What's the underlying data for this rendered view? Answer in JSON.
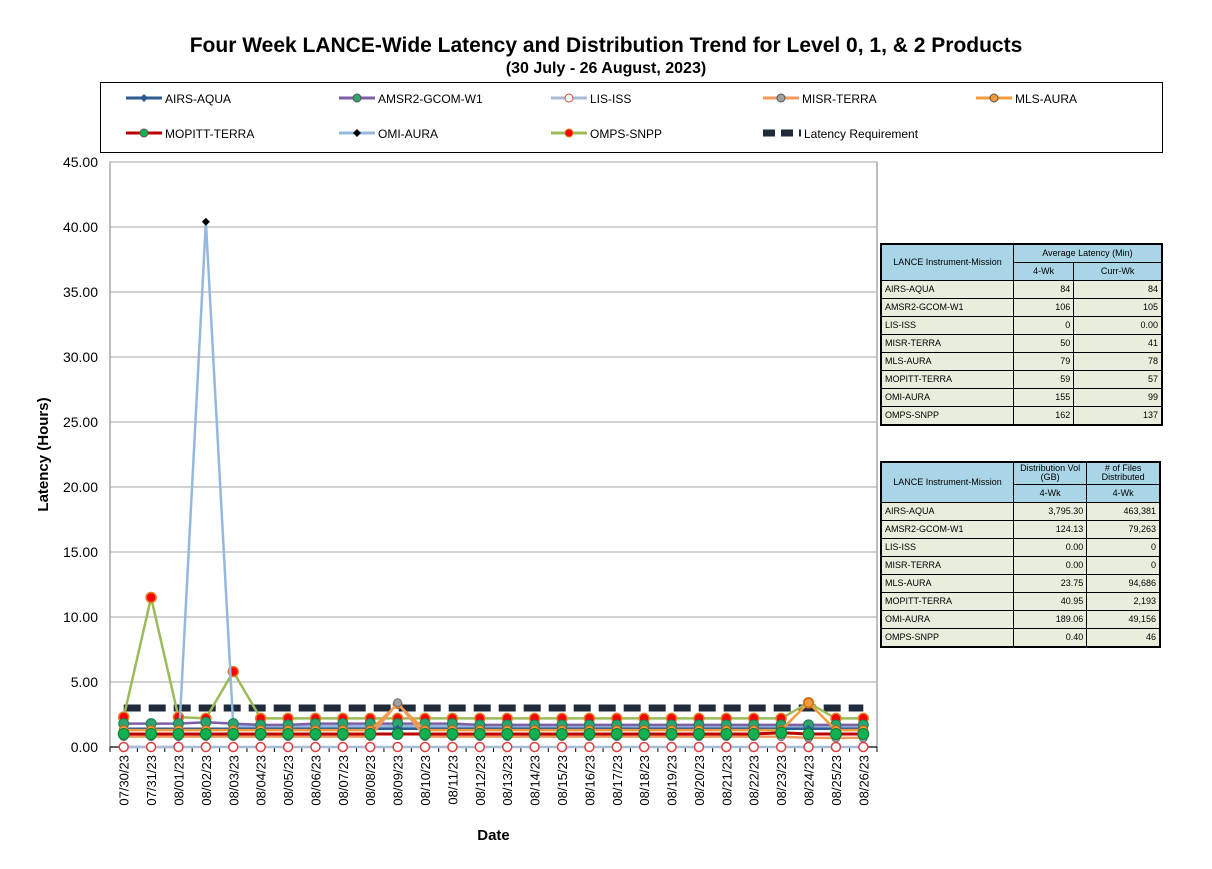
{
  "title": "Four Week LANCE-Wide Latency and Distribution Trend for Level 0, 1, & 2 Products",
  "subtitle": "(30  July   -  26  August,  2023)",
  "legend": [
    {
      "name": "AIRS-AQUA",
      "color": "#2e5b91",
      "marker": "diamond"
    },
    {
      "name": "AMSR2-GCOM-W1",
      "color": "#7f5ea8",
      "marker": "circle-green"
    },
    {
      "name": "LIS-ISS",
      "color": "#a7bdd6",
      "marker": "circle-hollow-red"
    },
    {
      "name": "MISR-TERRA",
      "color": "#f29a5c",
      "marker": "circle-gray"
    },
    {
      "name": "MLS-AURA",
      "color": "#f39a3c",
      "marker": "circle-orange"
    },
    {
      "name": "MOPITT-TERRA",
      "color": "#c00000",
      "marker": "circle-green-big"
    },
    {
      "name": "OMI-AURA",
      "color": "#95b8de",
      "marker": "diamond-black"
    },
    {
      "name": "OMPS-SNPP",
      "color": "#9bbb59",
      "marker": "circle-red"
    },
    {
      "name": "Latency Requirement",
      "color": "#1f2a3a",
      "marker": "dash"
    }
  ],
  "chart_data": {
    "type": "line",
    "title": "Four Week LANCE-Wide Latency and Distribution Trend for Level 0, 1, & 2 Products",
    "subtitle": "(30  July   -  26  August,  2023)",
    "xlabel": "Date",
    "ylabel": "Latency (Hours)",
    "ylim": [
      0,
      45
    ],
    "yticks": [
      "0.00",
      "5.00",
      "10.00",
      "15.00",
      "20.00",
      "25.00",
      "30.00",
      "35.00",
      "40.00",
      "45.00"
    ],
    "grid": true,
    "legend_position": "top",
    "categories": [
      "07/30/23",
      "07/31/23",
      "08/01/23",
      "08/02/23",
      "08/03/23",
      "08/04/23",
      "08/05/23",
      "08/06/23",
      "08/07/23",
      "08/08/23",
      "08/09/23",
      "08/10/23",
      "08/11/23",
      "08/12/23",
      "08/13/23",
      "08/14/23",
      "08/15/23",
      "08/16/23",
      "08/17/23",
      "08/18/23",
      "08/19/23",
      "08/20/23",
      "08/21/23",
      "08/22/23",
      "08/23/23",
      "08/24/23",
      "08/25/23",
      "08/26/23"
    ],
    "series": [
      {
        "name": "Latency Requirement",
        "values": [
          3,
          3,
          3,
          3,
          3,
          3,
          3,
          3,
          3,
          3,
          3,
          3,
          3,
          3,
          3,
          3,
          3,
          3,
          3,
          3,
          3,
          3,
          3,
          3,
          3,
          3,
          3,
          3
        ]
      },
      {
        "name": "OMPS-SNPP",
        "values": [
          2.3,
          11.5,
          2.3,
          2.2,
          5.8,
          2.2,
          2.2,
          2.2,
          2.2,
          2.2,
          2.2,
          2.2,
          2.2,
          2.2,
          2.2,
          2.2,
          2.2,
          2.2,
          2.2,
          2.2,
          2.2,
          2.2,
          2.2,
          2.2,
          2.2,
          3.4,
          2.2,
          2.2
        ]
      },
      {
        "name": "OMI-AURA",
        "values": [
          0,
          0,
          0,
          40.4,
          1.6,
          1.6,
          1.6,
          1.6,
          1.6,
          1.6,
          1.6,
          1.6,
          1.6,
          1.6,
          1.6,
          1.6,
          1.6,
          1.6,
          1.6,
          1.6,
          1.6,
          1.6,
          1.6,
          1.6,
          1.6,
          1.6,
          1.6,
          1.6
        ]
      },
      {
        "name": "AMSR2-GCOM-W1",
        "values": [
          1.8,
          1.8,
          1.8,
          1.9,
          1.8,
          1.7,
          1.7,
          1.8,
          1.8,
          1.8,
          1.8,
          1.8,
          1.8,
          1.7,
          1.7,
          1.7,
          1.7,
          1.7,
          1.7,
          1.7,
          1.7,
          1.7,
          1.7,
          1.7,
          1.7,
          1.7,
          1.7,
          1.7
        ]
      },
      {
        "name": "AIRS-AQUA",
        "values": [
          1.4,
          1.4,
          1.4,
          1.4,
          1.4,
          1.4,
          1.4,
          1.4,
          1.4,
          1.4,
          1.4,
          1.4,
          1.4,
          1.4,
          1.4,
          1.4,
          1.4,
          1.4,
          1.4,
          1.4,
          1.4,
          1.4,
          1.4,
          1.4,
          1.4,
          1.4,
          1.4,
          1.4
        ]
      },
      {
        "name": "MLS-AURA",
        "values": [
          1.3,
          1.3,
          1.3,
          1.3,
          1.3,
          1.3,
          1.3,
          1.3,
          1.3,
          1.3,
          3.3,
          1.3,
          1.3,
          1.3,
          1.3,
          1.3,
          1.3,
          1.3,
          1.3,
          1.3,
          1.3,
          1.3,
          1.3,
          1.3,
          1.3,
          3.4,
          1.3,
          1.3
        ]
      },
      {
        "name": "MISR-TERRA",
        "values": [
          0.8,
          0.8,
          0.8,
          0.8,
          0.8,
          0.8,
          0.8,
          0.8,
          0.8,
          0.8,
          3.4,
          0.8,
          0.8,
          0.8,
          0.8,
          0.8,
          0.8,
          0.8,
          0.8,
          0.8,
          0.8,
          0.8,
          0.8,
          0.8,
          0.8,
          0.7,
          0.7,
          0.7
        ]
      },
      {
        "name": "MOPITT-TERRA",
        "values": [
          1.0,
          1.0,
          1.0,
          1.0,
          1.0,
          1.0,
          1.0,
          1.0,
          1.0,
          1.0,
          1.0,
          1.0,
          1.0,
          1.0,
          1.0,
          1.0,
          1.0,
          1.0,
          1.0,
          1.0,
          1.0,
          1.0,
          1.0,
          1.0,
          1.1,
          1.0,
          1.0,
          1.0
        ]
      },
      {
        "name": "LIS-ISS",
        "values": [
          0,
          0,
          0,
          0,
          0,
          0,
          0,
          0,
          0,
          0,
          0,
          0,
          0,
          0,
          0,
          0,
          0,
          0,
          0,
          0,
          0,
          0,
          0,
          0,
          0,
          0,
          0,
          0
        ]
      }
    ]
  },
  "table1": {
    "header_col1": "LANCE Instrument-Mission",
    "header_col2": "Average Latency (Min)",
    "sub_4wk": "4-Wk",
    "sub_curr": "Curr-Wk",
    "rows": [
      {
        "name": "AIRS-AQUA",
        "a": "84",
        "b": "84"
      },
      {
        "name": "AMSR2-GCOM-W1",
        "a": "106",
        "b": "105"
      },
      {
        "name": "LIS-ISS",
        "a": "0",
        "b": "0.00"
      },
      {
        "name": "MISR-TERRA",
        "a": "50",
        "b": "41"
      },
      {
        "name": "MLS-AURA",
        "a": "79",
        "b": "78"
      },
      {
        "name": "MOPITT-TERRA",
        "a": "59",
        "b": "57"
      },
      {
        "name": "OMI-AURA",
        "a": "155",
        "b": "99"
      },
      {
        "name": "OMPS-SNPP",
        "a": "162",
        "b": "137"
      }
    ]
  },
  "table2": {
    "header_col1": "LANCE Instrument-Mission",
    "header_col2": "Distribution Vol (GB)",
    "header_col3": "# of Files Distributed",
    "sub_a": "4-Wk",
    "sub_b": "4-Wk",
    "rows": [
      {
        "name": "AIRS-AQUA",
        "a": "3,795.30",
        "b": "463,381"
      },
      {
        "name": "AMSR2-GCOM-W1",
        "a": "124.13",
        "b": "79,263"
      },
      {
        "name": "LIS-ISS",
        "a": "0.00",
        "b": "0"
      },
      {
        "name": "MISR-TERRA",
        "a": "0.00",
        "b": "0"
      },
      {
        "name": "MLS-AURA",
        "a": "23.75",
        "b": "94,686"
      },
      {
        "name": "MOPITT-TERRA",
        "a": "40.95",
        "b": "2,193"
      },
      {
        "name": "OMI-AURA",
        "a": "189.06",
        "b": "49,156"
      },
      {
        "name": "OMPS-SNPP",
        "a": "0.40",
        "b": "46"
      }
    ]
  }
}
